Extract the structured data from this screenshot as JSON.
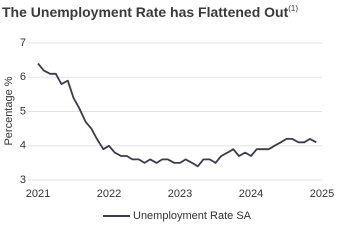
{
  "chart_data": {
    "type": "line",
    "title": "The Unemployment Rate has Flattened Out",
    "title_note": "(1)",
    "y_label": "Percentage %",
    "x": [
      2021,
      2021.08,
      2021.17,
      2021.25,
      2021.33,
      2021.42,
      2021.5,
      2021.58,
      2021.67,
      2021.75,
      2021.83,
      2021.92,
      2022,
      2022.08,
      2022.17,
      2022.25,
      2022.33,
      2022.42,
      2022.5,
      2022.58,
      2022.67,
      2022.75,
      2022.83,
      2022.92,
      2023,
      2023.08,
      2023.17,
      2023.25,
      2023.33,
      2023.42,
      2023.5,
      2023.58,
      2023.67,
      2023.75,
      2023.83,
      2023.92,
      2024,
      2024.08,
      2024.17,
      2024.25,
      2024.33,
      2024.42,
      2024.5,
      2024.58,
      2024.67,
      2024.75,
      2024.83,
      2024.92
    ],
    "series": [
      {
        "name": "Unemployment Rate SA",
        "color": "#3b3b4f",
        "values": [
          6.4,
          6.2,
          6.1,
          6.1,
          5.8,
          5.9,
          5.4,
          5.1,
          4.7,
          4.5,
          4.2,
          3.9,
          4.0,
          3.8,
          3.7,
          3.7,
          3.6,
          3.6,
          3.5,
          3.6,
          3.5,
          3.6,
          3.6,
          3.5,
          3.5,
          3.6,
          3.5,
          3.4,
          3.6,
          3.6,
          3.5,
          3.7,
          3.8,
          3.9,
          3.7,
          3.8,
          3.7,
          3.9,
          3.9,
          3.9,
          4.0,
          4.1,
          4.2,
          4.2,
          4.1,
          4.1,
          4.2,
          4.1
        ]
      }
    ],
    "xlim": [
      2021,
      2025
    ],
    "xticks": [
      2021,
      2022,
      2023,
      2024,
      2025
    ],
    "ylim": [
      3,
      7
    ],
    "yticks": [
      3,
      4,
      5,
      6,
      7
    ],
    "grid": true
  }
}
